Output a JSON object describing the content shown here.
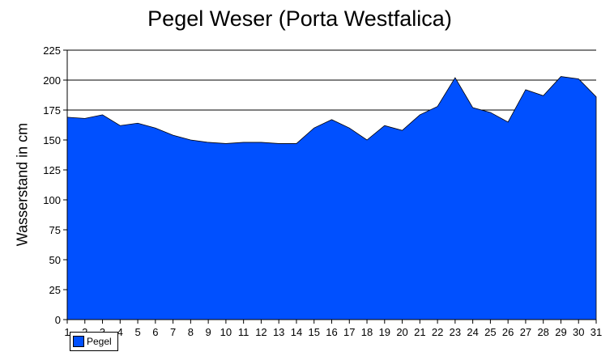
{
  "chart_data": {
    "type": "area",
    "title": "Pegel Weser (Porta Westfalica)",
    "xlabel": "",
    "ylabel": "Wasserstand in cm",
    "x": [
      1,
      2,
      3,
      4,
      5,
      6,
      7,
      8,
      9,
      10,
      11,
      12,
      13,
      14,
      15,
      16,
      17,
      18,
      19,
      20,
      21,
      22,
      23,
      24,
      25,
      26,
      27,
      28,
      29,
      30,
      31
    ],
    "series": [
      {
        "name": "Pegel",
        "color": "#0050ff",
        "values": [
          169,
          168,
          171,
          162,
          164,
          160,
          154,
          150,
          148,
          147,
          148,
          148,
          147,
          147,
          160,
          167,
          160,
          150,
          162,
          158,
          171,
          178,
          202,
          177,
          173,
          165,
          192,
          187,
          203,
          201,
          186
        ]
      }
    ],
    "ylim": [
      0,
      225
    ],
    "yticks": [
      0,
      25,
      50,
      75,
      100,
      125,
      150,
      175,
      200,
      225
    ],
    "gridlines": [
      175,
      200,
      225
    ],
    "grid": true,
    "legend": "bottom-left"
  }
}
